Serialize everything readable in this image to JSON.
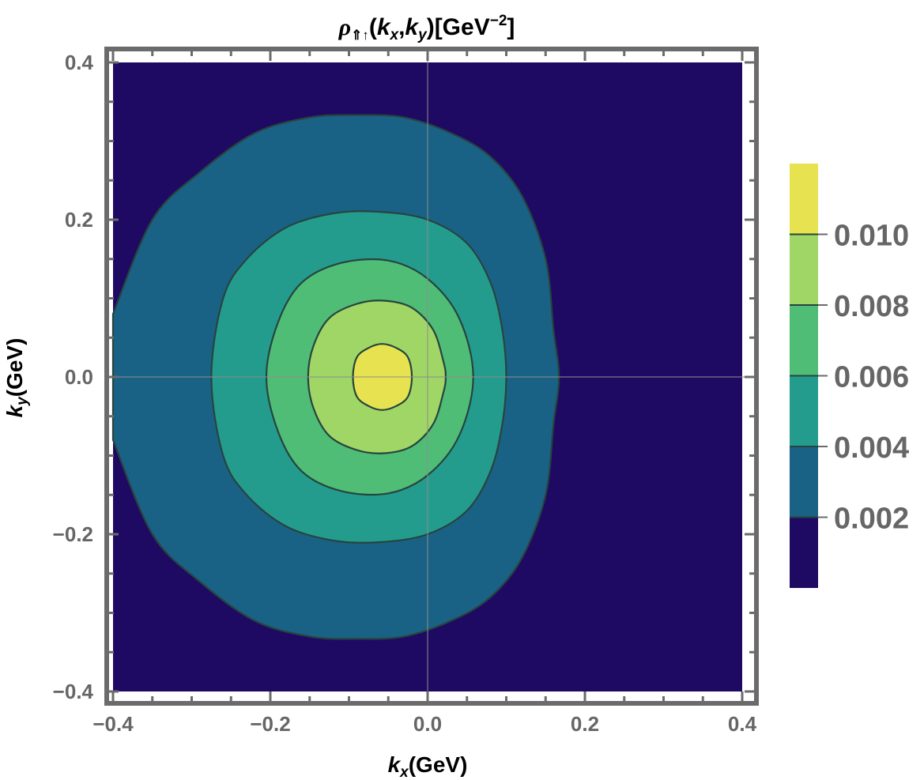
{
  "chart_data": {
    "type": "contour",
    "title": {
      "symbol": "ρ",
      "subscript": "⇑↑",
      "args_open": "(",
      "kx": "k",
      "kx_sub": "x",
      "comma": ",",
      "ky": "k",
      "ky_sub": "y",
      "args_close": ")",
      "units_open": "[GeV",
      "units_exp": "−2",
      "units_close": "]"
    },
    "xlabel": {
      "k": "k",
      "sub": "x",
      "unit": "(GeV)"
    },
    "ylabel": {
      "k": "k",
      "sub": "y",
      "unit": "(GeV)"
    },
    "xlim": [
      -0.4,
      0.4
    ],
    "ylim": [
      -0.4,
      0.4
    ],
    "xticks": [
      {
        "value": -0.4,
        "label": "−0.4"
      },
      {
        "value": -0.2,
        "label": "−0.2"
      },
      {
        "value": 0.0,
        "label": "0.0"
      },
      {
        "value": 0.2,
        "label": "0.2"
      },
      {
        "value": 0.4,
        "label": "0.4"
      }
    ],
    "yticks": [
      {
        "value": -0.4,
        "label": "−0.4"
      },
      {
        "value": -0.2,
        "label": "−0.2"
      },
      {
        "value": 0.0,
        "label": "0.0"
      },
      {
        "value": 0.2,
        "label": "0.2"
      },
      {
        "value": 0.4,
        "label": "0.4"
      }
    ],
    "background_color": "#1f0a63",
    "contours": [
      {
        "level": 0.002,
        "color": "#1a6285",
        "points": [
          [
            -0.4,
            -0.08
          ],
          [
            -0.35,
            -0.2
          ],
          [
            -0.29,
            -0.26
          ],
          [
            -0.22,
            -0.31
          ],
          [
            -0.15,
            -0.33
          ],
          [
            -0.09,
            -0.333
          ],
          [
            -0.03,
            -0.33
          ],
          [
            0.03,
            -0.31
          ],
          [
            0.08,
            -0.28
          ],
          [
            0.12,
            -0.23
          ],
          [
            0.15,
            -0.15
          ],
          [
            0.16,
            -0.06
          ],
          [
            0.167,
            0.0
          ],
          [
            0.16,
            0.06
          ],
          [
            0.15,
            0.15
          ],
          [
            0.12,
            0.23
          ],
          [
            0.08,
            0.28
          ],
          [
            0.03,
            0.31
          ],
          [
            -0.03,
            0.33
          ],
          [
            -0.09,
            0.333
          ],
          [
            -0.15,
            0.33
          ],
          [
            -0.22,
            0.31
          ],
          [
            -0.29,
            0.26
          ],
          [
            -0.35,
            0.2
          ],
          [
            -0.4,
            0.08
          ]
        ]
      },
      {
        "level": 0.004,
        "color": "#249c8d",
        "points": [
          [
            -0.275,
            0.0
          ],
          [
            -0.26,
            -0.1
          ],
          [
            -0.23,
            -0.15
          ],
          [
            -0.18,
            -0.19
          ],
          [
            -0.12,
            -0.208
          ],
          [
            -0.06,
            -0.21
          ],
          [
            0.0,
            -0.2
          ],
          [
            0.05,
            -0.17
          ],
          [
            0.08,
            -0.12
          ],
          [
            0.095,
            -0.06
          ],
          [
            0.1,
            0.0
          ],
          [
            0.095,
            0.06
          ],
          [
            0.08,
            0.12
          ],
          [
            0.05,
            0.17
          ],
          [
            0.0,
            0.2
          ],
          [
            -0.06,
            0.21
          ],
          [
            -0.12,
            0.208
          ],
          [
            -0.18,
            0.19
          ],
          [
            -0.23,
            0.15
          ],
          [
            -0.26,
            0.1
          ]
        ]
      },
      {
        "level": 0.006,
        "color": "#4fbd76",
        "points": [
          [
            -0.205,
            0.0
          ],
          [
            -0.19,
            -0.07
          ],
          [
            -0.16,
            -0.12
          ],
          [
            -0.11,
            -0.145
          ],
          [
            -0.05,
            -0.148
          ],
          [
            0.0,
            -0.125
          ],
          [
            0.04,
            -0.075
          ],
          [
            0.058,
            0.0
          ],
          [
            0.04,
            0.075
          ],
          [
            0.0,
            0.125
          ],
          [
            -0.05,
            0.148
          ],
          [
            -0.11,
            0.145
          ],
          [
            -0.16,
            0.12
          ],
          [
            -0.19,
            0.07
          ]
        ]
      },
      {
        "level": 0.008,
        "color": "#a0d665",
        "points": [
          [
            -0.152,
            0.0
          ],
          [
            -0.145,
            -0.04
          ],
          [
            -0.125,
            -0.075
          ],
          [
            -0.09,
            -0.093
          ],
          [
            -0.055,
            -0.097
          ],
          [
            -0.02,
            -0.088
          ],
          [
            0.007,
            -0.06
          ],
          [
            0.02,
            -0.02
          ],
          [
            0.023,
            0.0
          ],
          [
            0.02,
            0.02
          ],
          [
            0.007,
            0.06
          ],
          [
            -0.02,
            0.088
          ],
          [
            -0.055,
            0.097
          ],
          [
            -0.09,
            0.093
          ],
          [
            -0.125,
            0.075
          ],
          [
            -0.145,
            0.04
          ]
        ]
      },
      {
        "level": 0.01,
        "color": "#e7e350",
        "points": [
          [
            -0.095,
            0.0
          ],
          [
            -0.09,
            -0.025
          ],
          [
            -0.075,
            -0.037
          ],
          [
            -0.058,
            -0.042
          ],
          [
            -0.04,
            -0.037
          ],
          [
            -0.025,
            -0.025
          ],
          [
            -0.02,
            0.0
          ],
          [
            -0.025,
            0.025
          ],
          [
            -0.04,
            0.037
          ],
          [
            -0.058,
            0.042
          ],
          [
            -0.075,
            0.037
          ],
          [
            -0.09,
            0.025
          ]
        ]
      }
    ],
    "colorbar": {
      "bands": [
        {
          "color": "#1f0a63",
          "from": 0.0,
          "to": 0.002
        },
        {
          "color": "#1a6285",
          "from": 0.002,
          "to": 0.004
        },
        {
          "color": "#249c8d",
          "from": 0.004,
          "to": 0.006
        },
        {
          "color": "#4fbd76",
          "from": 0.006,
          "to": 0.008
        },
        {
          "color": "#a0d665",
          "from": 0.008,
          "to": 0.01
        },
        {
          "color": "#e7e350",
          "from": 0.01,
          "to": 0.012
        }
      ],
      "ticks": [
        {
          "value": 0.002,
          "label": "0.002"
        },
        {
          "value": 0.004,
          "label": "0.004"
        },
        {
          "value": 0.006,
          "label": "0.006"
        },
        {
          "value": 0.008,
          "label": "0.008"
        },
        {
          "value": 0.01,
          "label": "0.010"
        }
      ]
    }
  }
}
